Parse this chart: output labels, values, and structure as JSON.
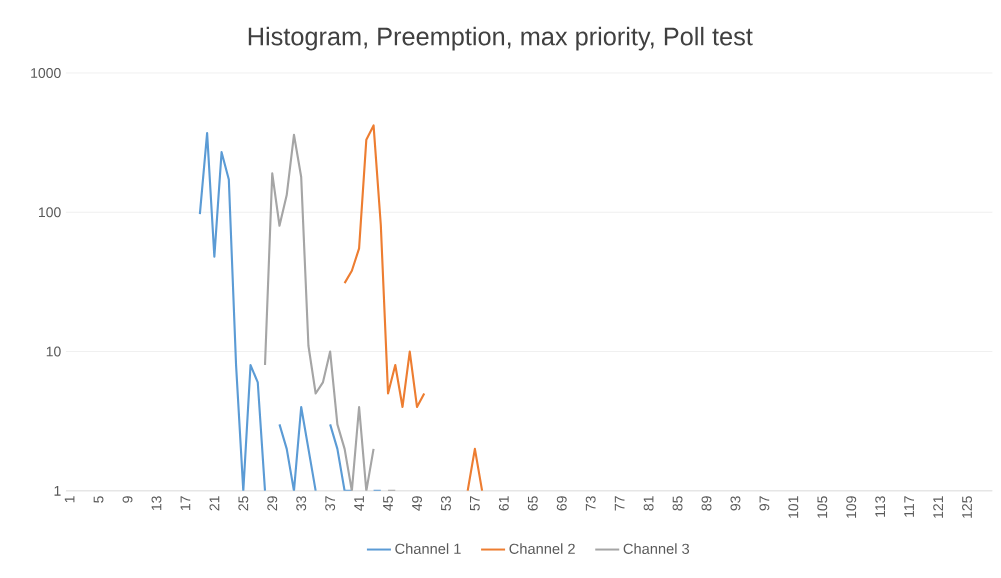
{
  "chart_data": {
    "type": "line",
    "title": "Histogram, Preemption, max priority, Poll test",
    "categories": [
      "1",
      null,
      null,
      null,
      "5",
      null,
      null,
      null,
      "9",
      null,
      null,
      null,
      "13",
      null,
      null,
      null,
      "17",
      null,
      null,
      null,
      "21",
      null,
      null,
      null,
      "25",
      null,
      null,
      null,
      "29",
      null,
      null,
      null,
      "33",
      null,
      null,
      null,
      "37",
      null,
      null,
      null,
      "41",
      null,
      null,
      null,
      "45",
      null,
      null,
      null,
      "49",
      null,
      null,
      null,
      "53",
      null,
      null,
      null,
      "57",
      null,
      null,
      null,
      "61",
      null,
      null,
      null,
      "65",
      null,
      null,
      null,
      "69",
      null,
      null,
      null,
      "73",
      null,
      null,
      null,
      "77",
      null,
      null,
      null,
      "81",
      null,
      null,
      null,
      "85",
      null,
      null,
      null,
      "89",
      null,
      null,
      null,
      "93",
      null,
      null,
      null,
      "97",
      null,
      null,
      null,
      "101",
      null,
      null,
      null,
      "105",
      null,
      null,
      null,
      "109",
      null,
      null,
      null,
      "113",
      null,
      null,
      null,
      "117",
      null,
      null,
      null,
      "121",
      null,
      null,
      null,
      "125",
      null,
      null,
      null
    ],
    "series": [
      {
        "name": "Channel 1",
        "color": "#5b9bd5",
        "values": [
          null,
          null,
          null,
          null,
          null,
          null,
          null,
          null,
          null,
          null,
          null,
          null,
          null,
          null,
          null,
          null,
          null,
          null,
          97,
          370,
          48,
          270,
          172,
          8,
          1,
          8,
          6,
          1,
          null,
          3,
          2,
          1,
          4,
          2,
          1,
          null,
          3,
          2,
          1,
          1,
          null,
          null,
          1,
          1,
          null,
          null,
          null,
          null,
          null,
          null,
          null,
          null,
          null,
          null,
          null,
          null,
          null,
          null,
          null,
          null,
          null,
          null,
          null,
          null,
          null,
          null,
          null,
          null,
          null,
          null,
          null,
          null,
          null,
          null,
          null,
          null,
          null,
          null,
          null,
          null,
          null,
          null,
          null,
          null,
          null,
          null,
          null,
          null,
          null,
          null,
          null,
          null,
          null,
          null,
          null,
          null,
          null,
          null,
          null,
          null,
          null,
          null,
          null,
          null,
          null,
          null,
          null,
          null,
          null,
          null,
          null,
          null,
          null,
          null,
          null,
          null,
          null,
          null,
          null,
          null,
          null,
          null,
          null,
          null,
          null,
          null,
          null,
          null
        ]
      },
      {
        "name": "Channel 2",
        "color": "#ed7d31",
        "values": [
          null,
          null,
          null,
          null,
          null,
          null,
          null,
          null,
          null,
          null,
          null,
          null,
          null,
          null,
          null,
          null,
          null,
          null,
          null,
          null,
          null,
          null,
          null,
          null,
          null,
          null,
          null,
          null,
          null,
          null,
          null,
          null,
          null,
          null,
          null,
          null,
          null,
          null,
          31,
          38,
          55,
          332,
          420,
          81,
          5,
          8,
          4,
          10,
          4,
          5,
          null,
          null,
          null,
          null,
          null,
          1,
          2,
          1,
          null,
          null,
          null,
          null,
          null,
          null,
          null,
          null,
          null,
          null,
          null,
          null,
          null,
          null,
          null,
          null,
          null,
          null,
          null,
          null,
          null,
          null,
          null,
          null,
          null,
          null,
          null,
          null,
          null,
          null,
          null,
          null,
          null,
          null,
          null,
          null,
          null,
          null,
          null,
          null,
          null,
          null,
          null,
          null,
          null,
          null,
          null,
          null,
          null,
          null,
          null,
          null,
          null,
          null,
          null,
          null,
          null,
          null,
          null,
          null,
          null,
          null,
          null,
          null,
          null,
          null,
          null,
          null,
          null,
          null
        ]
      },
      {
        "name": "Channel 3",
        "color": "#a5a5a5",
        "values": [
          null,
          null,
          null,
          null,
          null,
          null,
          null,
          null,
          null,
          null,
          null,
          null,
          null,
          null,
          null,
          null,
          null,
          null,
          null,
          null,
          null,
          null,
          null,
          null,
          null,
          null,
          null,
          8,
          190,
          80,
          133,
          360,
          179,
          11,
          5,
          6,
          10,
          3,
          2,
          1,
          4,
          1,
          2,
          null,
          1,
          1,
          null,
          null,
          null,
          null,
          null,
          null,
          null,
          null,
          null,
          null,
          null,
          null,
          null,
          null,
          null,
          null,
          null,
          null,
          null,
          null,
          null,
          null,
          null,
          null,
          null,
          null,
          null,
          null,
          null,
          null,
          null,
          null,
          null,
          null,
          null,
          null,
          null,
          null,
          null,
          null,
          null,
          null,
          null,
          null,
          null,
          null,
          null,
          null,
          null,
          null,
          null,
          null,
          null,
          null,
          null,
          null,
          null,
          null,
          null,
          null,
          null,
          null,
          null,
          null,
          null,
          null,
          null,
          null,
          null,
          null,
          null,
          null,
          null,
          null,
          null,
          null,
          null,
          null,
          null,
          null,
          null,
          null
        ]
      }
    ],
    "log": "y",
    "ylim": [
      1,
      1000
    ],
    "yticks": [
      1,
      10,
      100,
      1000
    ],
    "grid": "y",
    "legend": "bottom",
    "marker": "none",
    "line_style": "solid"
  }
}
